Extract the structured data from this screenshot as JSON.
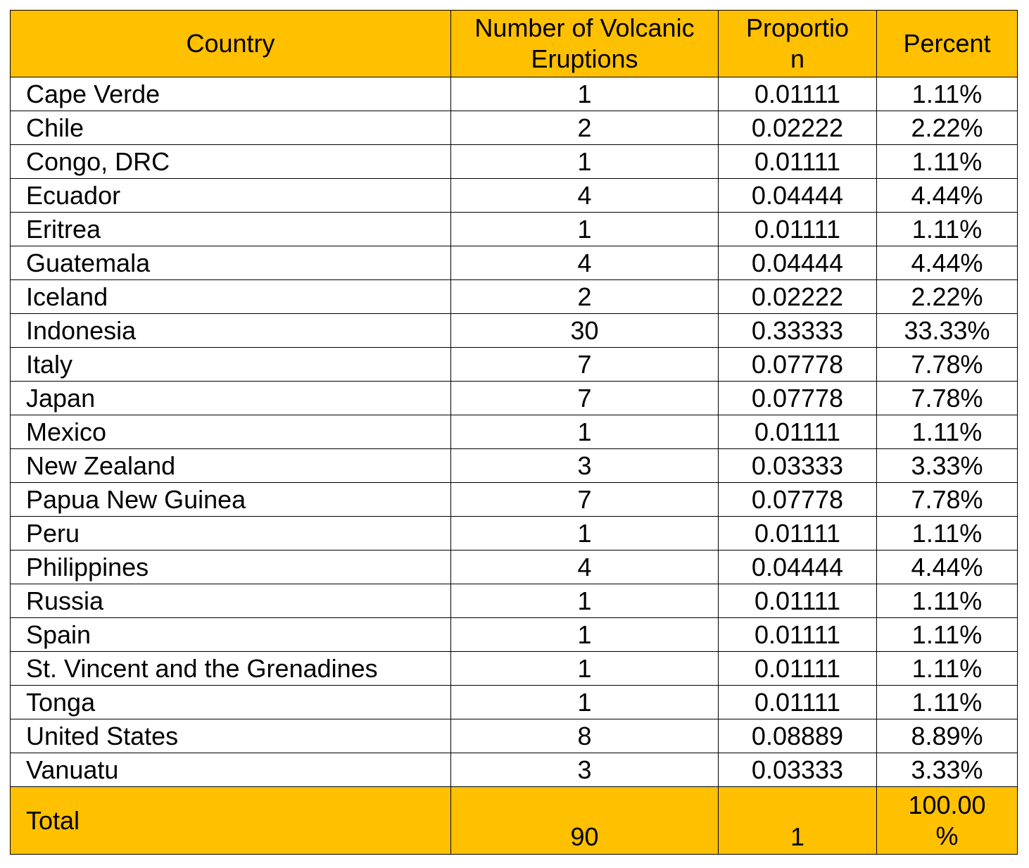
{
  "chart_data": {
    "type": "table",
    "columns": [
      "Country",
      "Number of Volcanic Eruptions",
      "Proportion",
      "Percent"
    ],
    "header_display": [
      "Country",
      "Number of Volcanic Eruptions",
      "Proportio\nn",
      "Percent"
    ],
    "rows": [
      {
        "country": "Cape Verde",
        "eruptions": "1",
        "proportion": "0.01111",
        "percent": "1.11%"
      },
      {
        "country": "Chile",
        "eruptions": "2",
        "proportion": "0.02222",
        "percent": "2.22%"
      },
      {
        "country": "Congo, DRC",
        "eruptions": "1",
        "proportion": "0.01111",
        "percent": "1.11%"
      },
      {
        "country": "Ecuador",
        "eruptions": "4",
        "proportion": "0.04444",
        "percent": "4.44%"
      },
      {
        "country": "Eritrea",
        "eruptions": "1",
        "proportion": "0.01111",
        "percent": "1.11%"
      },
      {
        "country": "Guatemala",
        "eruptions": "4",
        "proportion": "0.04444",
        "percent": "4.44%"
      },
      {
        "country": "Iceland",
        "eruptions": "2",
        "proportion": "0.02222",
        "percent": "2.22%"
      },
      {
        "country": "Indonesia",
        "eruptions": "30",
        "proportion": "0.33333",
        "percent": "33.33%"
      },
      {
        "country": "Italy",
        "eruptions": "7",
        "proportion": "0.07778",
        "percent": "7.78%"
      },
      {
        "country": "Japan",
        "eruptions": "7",
        "proportion": "0.07778",
        "percent": "7.78%"
      },
      {
        "country": "Mexico",
        "eruptions": "1",
        "proportion": "0.01111",
        "percent": "1.11%"
      },
      {
        "country": "New Zealand",
        "eruptions": "3",
        "proportion": "0.03333",
        "percent": "3.33%"
      },
      {
        "country": "Papua New Guinea",
        "eruptions": "7",
        "proportion": "0.07778",
        "percent": "7.78%"
      },
      {
        "country": "Peru",
        "eruptions": "1",
        "proportion": "0.01111",
        "percent": "1.11%"
      },
      {
        "country": "Philippines",
        "eruptions": "4",
        "proportion": "0.04444",
        "percent": "4.44%"
      },
      {
        "country": "Russia",
        "eruptions": "1",
        "proportion": "0.01111",
        "percent": "1.11%"
      },
      {
        "country": "Spain",
        "eruptions": "1",
        "proportion": "0.01111",
        "percent": "1.11%"
      },
      {
        "country": "St. Vincent and the Grenadines",
        "eruptions": "1",
        "proportion": "0.01111",
        "percent": "1.11%"
      },
      {
        "country": "Tonga",
        "eruptions": "1",
        "proportion": "0.01111",
        "percent": "1.11%"
      },
      {
        "country": "United States",
        "eruptions": "8",
        "proportion": "0.08889",
        "percent": "8.89%"
      },
      {
        "country": "Vanuatu",
        "eruptions": "3",
        "proportion": "0.03333",
        "percent": "3.33%"
      }
    ],
    "total": {
      "label": "Total",
      "eruptions": "90",
      "proportion": "1",
      "percent": "100.00\n%"
    },
    "colors": {
      "header_fill": "#FFC000",
      "total_fill": "#FFC000",
      "border": "#000000"
    }
  }
}
